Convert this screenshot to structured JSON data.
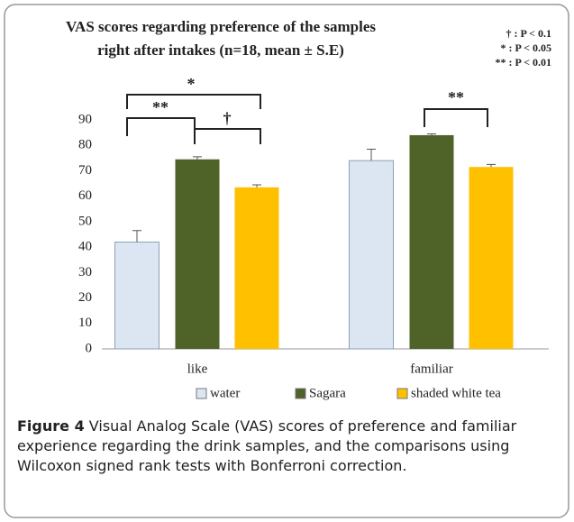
{
  "chart_data": {
    "type": "bar",
    "title": [
      "VAS scores regarding preference of the samples",
      "right after intakes (n=18, mean ± S.E)"
    ],
    "categories": [
      "like",
      "familiar"
    ],
    "series": [
      {
        "name": "water",
        "color": "#dce6f2",
        "values": [
          42,
          74
        ],
        "errors": [
          4.5,
          4.5
        ]
      },
      {
        "name": "Sagara",
        "color": "#4f6228",
        "values": [
          74.5,
          84
        ],
        "errors": [
          1,
          0.5
        ]
      },
      {
        "name": "shaded white tea",
        "color": "#ffc000",
        "values": [
          63.5,
          71.5
        ],
        "errors": [
          1,
          1
        ]
      }
    ],
    "ylim": [
      0,
      90
    ],
    "yticks": [
      0,
      10,
      20,
      30,
      40,
      50,
      60,
      70,
      80,
      90
    ],
    "grid": false,
    "legend": "bottom",
    "significance": [
      "*",
      "**",
      "†",
      "**"
    ],
    "significance_key": [
      "† : P < 0.1",
      "* : P < 0.05",
      "** : P < 0.01"
    ]
  },
  "caption": {
    "label": "Figure 4",
    "text": "Visual Analog Scale (VAS) scores of preference and familiar experience regarding the drink samples, and the comparisons using Wilcoxon signed rank tests with Bonferroni correction."
  }
}
